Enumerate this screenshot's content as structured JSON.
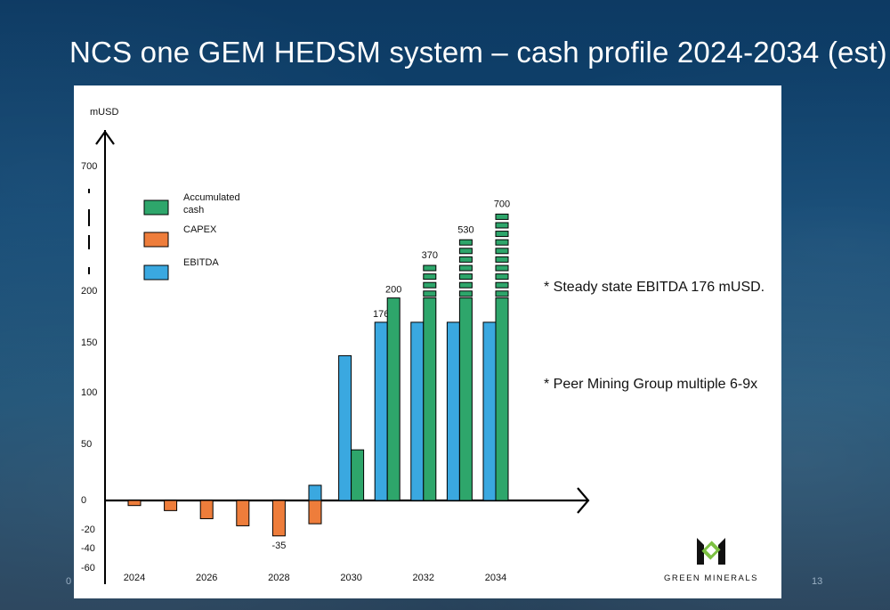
{
  "slide": {
    "title": "NCS one GEM HEDSM system – cash profile 2024-2034 (est)",
    "page_number": "13",
    "left_page_fragment": "0"
  },
  "logo": {
    "text": "GREEN MINERALS"
  },
  "notes": [
    "*  Steady state EBITDA 176 mUSD.",
    "*  Peer Mining Group multiple 6-9x"
  ],
  "colors": {
    "accumulated": "#2ea66b",
    "capex": "#ee7d3b",
    "ebitda": "#3aa8e0",
    "logo_green": "#7cc142"
  },
  "chart_data": {
    "type": "bar",
    "ylabel": "mUSD",
    "y_ticks": [
      "700",
      "200",
      "150",
      "100",
      "50",
      "0",
      "-20",
      "-40",
      "-60"
    ],
    "x_tick_labels": [
      "2024",
      "2026",
      "2028",
      "2030",
      "2032",
      "2034"
    ],
    "axis_break": true,
    "legend": {
      "placement": "top-left",
      "entries": [
        {
          "name": "Accumulated cash",
          "lines": [
            "Accumulated",
            "cash"
          ],
          "color": "#2ea66b"
        },
        {
          "name": "CAPEX",
          "lines": [
            "CAPEX"
          ],
          "color": "#ee7d3b"
        },
        {
          "name": "EBITDA",
          "lines": [
            "EBITDA"
          ],
          "color": "#3aa8e0"
        }
      ]
    },
    "series": [
      {
        "name": "CAPEX",
        "color": "#ee7d3b",
        "x": [
          2024,
          2025,
          2026,
          2027,
          2028,
          2029
        ],
        "values": [
          -5,
          -10,
          -18,
          -25,
          -35,
          -23
        ],
        "labels": [
          "",
          "",
          "",
          "",
          "-35",
          ""
        ]
      },
      {
        "name": "EBITDA",
        "color": "#3aa8e0",
        "x": [
          2029,
          2030,
          2031,
          2032,
          2033,
          2034
        ],
        "values": [
          15,
          143,
          176,
          176,
          176,
          176
        ],
        "labels": [
          "",
          "",
          "176",
          "",
          "",
          ""
        ]
      },
      {
        "name": "Accumulated cash",
        "color": "#2ea66b",
        "x": [
          2030,
          2031,
          2032,
          2033,
          2034
        ],
        "values": [
          50,
          200,
          370,
          530,
          700
        ],
        "labels": [
          "",
          "200",
          "370",
          "530",
          "700"
        ]
      }
    ]
  }
}
